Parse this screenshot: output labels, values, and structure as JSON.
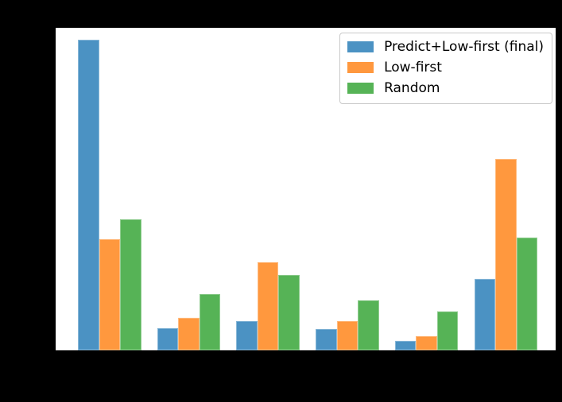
{
  "figure": {
    "background": "#000000",
    "plot_background": "#ffffff",
    "spine_color": "#000000"
  },
  "legend": {
    "background": "#ffffff",
    "border_color": "#c9c9c9",
    "position": "upper-right"
  },
  "chart_data": {
    "type": "bar",
    "title": "",
    "xlabel": "",
    "ylabel": "",
    "categories": [
      "",
      "",
      "",
      "",
      "",
      ""
    ],
    "num_groups": 6,
    "series": [
      {
        "name": "Predict+Low-first (final)",
        "color": "#4b92c3",
        "values": [
          0.963,
          0.07,
          0.092,
          0.067,
          0.03,
          0.221
        ]
      },
      {
        "name": "Low-first",
        "color": "#ff983e",
        "values": [
          0.344,
          0.101,
          0.273,
          0.09,
          0.044,
          0.594
        ]
      },
      {
        "name": "Random",
        "color": "#56b356",
        "values": [
          0.406,
          0.176,
          0.233,
          0.156,
          0.12,
          0.351
        ]
      }
    ],
    "ylim": [
      0,
      1
    ],
    "grid": false,
    "legend_position": "upper right",
    "tick_labels_visible": false
  }
}
